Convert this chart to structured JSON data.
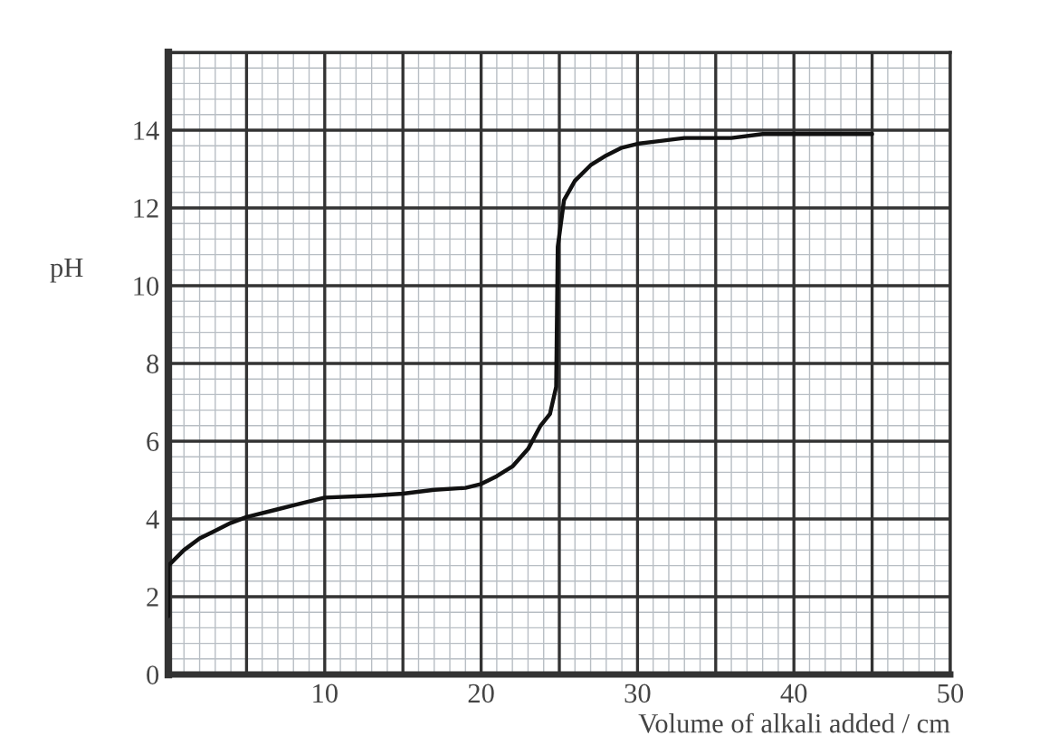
{
  "chart_data": {
    "type": "line",
    "xlabel": "Volume of alkali added / cm",
    "ylabel": "pH",
    "series": [
      {
        "color": "#111111",
        "x": [
          0,
          0,
          1,
          2,
          3,
          4,
          5,
          7,
          8,
          10,
          13,
          15,
          17,
          19,
          20,
          21,
          22,
          23,
          23.8,
          24.4,
          24.8,
          24.9,
          25.3,
          26,
          27,
          28,
          29,
          30,
          31,
          33,
          36,
          38,
          45
        ],
        "values": [
          1.5,
          2.8,
          3.2,
          3.5,
          3.7,
          3.9,
          4.05,
          4.25,
          4.35,
          4.55,
          4.6,
          4.65,
          4.75,
          4.8,
          4.9,
          5.1,
          5.35,
          5.8,
          6.4,
          6.7,
          7.4,
          11,
          12.2,
          12.7,
          13.1,
          13.35,
          13.55,
          13.65,
          13.7,
          13.8,
          13.8,
          13.9,
          13.9
        ]
      }
    ],
    "xlim": [
      0,
      50
    ],
    "ylim": [
      0,
      16
    ],
    "xticks": [
      {
        "value": 0,
        "label": null
      },
      {
        "value": 5,
        "label": null
      },
      10,
      {
        "value": 15,
        "label": null
      },
      20,
      {
        "value": 25,
        "label": null
      },
      30,
      {
        "value": 35,
        "label": null
      },
      40,
      {
        "value": 45,
        "label": null
      },
      50
    ],
    "yticks": [
      0,
      2,
      4,
      6,
      8,
      10,
      12,
      14,
      {
        "value": 16,
        "label": null
      }
    ],
    "grid": true,
    "marker": "none",
    "line_style": "solid"
  }
}
